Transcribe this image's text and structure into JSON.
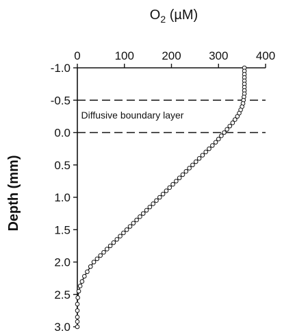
{
  "chart_data": {
    "type": "scatter",
    "title": "",
    "xlabel_main": "O",
    "xlabel_sub": "2",
    "xlabel_unit": " (µM)",
    "ylabel": "Depth (mm)",
    "xlim": [
      0,
      400
    ],
    "ylim": [
      -1.0,
      3.0
    ],
    "y_inverted": true,
    "x_axis_position": "top",
    "grid": false,
    "xticks": [
      0,
      100,
      200,
      300,
      400
    ],
    "xtick_labels": [
      "0",
      "100",
      "200",
      "300",
      "400"
    ],
    "yticks": [
      -1.0,
      -0.5,
      0.0,
      0.5,
      1.0,
      1.5,
      2.0,
      2.5,
      3.0
    ],
    "ytick_labels": [
      "-1.0",
      "-0.5",
      "0.0",
      "0.5",
      "1.0",
      "1.5",
      "2.0",
      "2.5",
      "3.0"
    ],
    "reference_lines": [
      {
        "orientation": "horizontal",
        "y": -0.5,
        "style": "dashed"
      },
      {
        "orientation": "horizontal",
        "y": 0.0,
        "style": "dashed"
      }
    ],
    "annotation": {
      "text": "Diffusive boundary layer",
      "x": 8,
      "y": -0.27
    },
    "series": [
      {
        "marker": "open-circle",
        "connected": true,
        "x": [
          355,
          355,
          355,
          355,
          355,
          355,
          355,
          355,
          355,
          354,
          353,
          352,
          350,
          347,
          344,
          340,
          335,
          330,
          324,
          318,
          312,
          306,
          300,
          294,
          287,
          280,
          273,
          266,
          259,
          252,
          245,
          238,
          231,
          224,
          217,
          210,
          203,
          196,
          189,
          182,
          175,
          168,
          161,
          154,
          147,
          140,
          133,
          126,
          119,
          112,
          105,
          98,
          91,
          84,
          77,
          70,
          63,
          56,
          49,
          42,
          35,
          28,
          21,
          15,
          10,
          6,
          3,
          1,
          0,
          0,
          0,
          0,
          0
        ],
        "y": [
          -1.0,
          -0.95,
          -0.9,
          -0.85,
          -0.8,
          -0.75,
          -0.7,
          -0.65,
          -0.6,
          -0.55,
          -0.5,
          -0.45,
          -0.4,
          -0.35,
          -0.3,
          -0.25,
          -0.2,
          -0.15,
          -0.1,
          -0.05,
          0.0,
          0.05,
          0.1,
          0.15,
          0.2,
          0.25,
          0.3,
          0.35,
          0.4,
          0.45,
          0.5,
          0.55,
          0.6,
          0.65,
          0.7,
          0.75,
          0.8,
          0.85,
          0.9,
          0.95,
          1.0,
          1.05,
          1.1,
          1.15,
          1.2,
          1.25,
          1.3,
          1.35,
          1.4,
          1.45,
          1.5,
          1.55,
          1.6,
          1.65,
          1.7,
          1.75,
          1.8,
          1.85,
          1.9,
          1.95,
          2.0,
          2.07,
          2.15,
          2.22,
          2.3,
          2.37,
          2.45,
          2.55,
          2.65,
          2.75,
          2.85,
          2.92,
          3.0
        ]
      }
    ]
  }
}
